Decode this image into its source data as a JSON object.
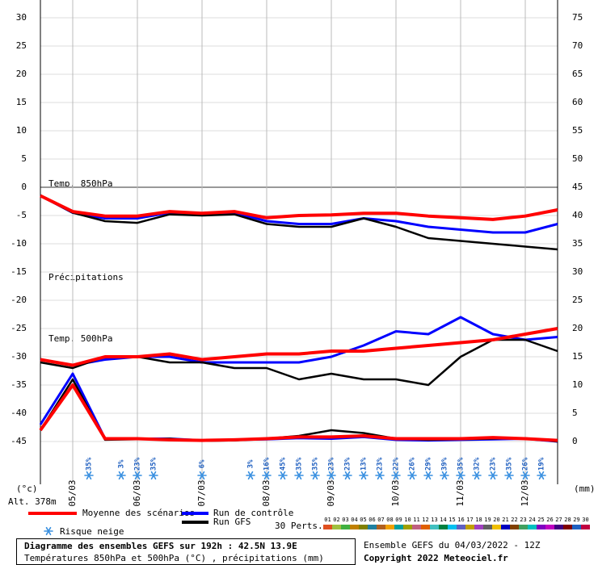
{
  "chart_data": {
    "type": "line",
    "xlim": [
      0,
      192
    ],
    "xticks": [
      {
        "value": 12,
        "label": "05/03"
      },
      {
        "value": 36,
        "label": "06/03"
      },
      {
        "value": 60,
        "label": "07/03"
      },
      {
        "value": 84,
        "label": "08/03"
      },
      {
        "value": 108,
        "label": "09/03"
      },
      {
        "value": 132,
        "label": "10/03"
      },
      {
        "value": 156,
        "label": "11/03"
      },
      {
        "value": 180,
        "label": "12/03"
      }
    ],
    "ylim": [
      -52.57,
      33.14
    ],
    "yticks": [
      -45,
      -40,
      -35,
      -30,
      -25,
      -20,
      -15,
      -10,
      -5,
      0,
      5,
      10,
      15,
      20,
      25,
      30
    ],
    "y2lim": [
      -7.57,
      78.14
    ],
    "y2ticks": [
      0,
      5,
      10,
      15,
      20,
      25,
      30,
      35,
      40,
      45,
      50,
      55,
      60,
      65,
      70,
      75
    ],
    "grid": true,
    "y_unit": "(°c)",
    "y2_unit": "(mm)",
    "altitude": "Alt. 378m",
    "variable_labels": {
      "t850": "Temp. 850hPa",
      "precip": "Précipitations",
      "t500": "Temp. 500hPa"
    },
    "x": [
      0,
      12,
      24,
      36,
      48,
      60,
      72,
      84,
      96,
      108,
      120,
      132,
      144,
      156,
      168,
      180,
      192
    ],
    "runs": [
      {
        "name": "Moyenne des scénarios",
        "color": "#ff0000",
        "t850": [
          -1.5,
          -4.3,
          -5.1,
          -5.1,
          -4.3,
          -4.6,
          -4.3,
          -5.4,
          -5,
          -4.9,
          -4.6,
          -4.6,
          -5.1,
          -5.4,
          -5.7,
          -5.1,
          -4
        ],
        "t500": [
          -30.5,
          -31.5,
          -30,
          -30,
          -29.5,
          -30.5,
          -30,
          -29.5,
          -29.5,
          -29,
          -29,
          -28.5,
          -28,
          -27.5,
          -27,
          -26,
          -25
        ],
        "precip": [
          2,
          10,
          0.5,
          0.5,
          0.3,
          0.2,
          0.3,
          0.5,
          0.8,
          0.8,
          1,
          0.5,
          0.5,
          0.5,
          0.7,
          0.5,
          0.2
        ]
      },
      {
        "name": "Run de contrôle",
        "color": "#0000ff",
        "t850": [
          -1.5,
          -4.5,
          -5.5,
          -5.5,
          -4.5,
          -4.8,
          -4.5,
          -6,
          -6.5,
          -6.5,
          -5.5,
          -6,
          -7,
          -7.5,
          -8,
          -8,
          -6.5
        ],
        "t500": [
          -30.5,
          -31.5,
          -30.5,
          -30,
          -30,
          -31,
          -31,
          -31,
          -31,
          -30,
          -28,
          -25.5,
          -26,
          -23,
          -26,
          -27,
          -26.5
        ],
        "precip": [
          3,
          12,
          0.5,
          0.5,
          0.5,
          0.2,
          0.3,
          0.4,
          0.6,
          0.5,
          0.8,
          0.3,
          0.2,
          0.3,
          0.4,
          0.5,
          0
        ]
      },
      {
        "name": "Run GFS",
        "color": "#000000",
        "t850": [
          -1.5,
          -4.5,
          -6,
          -6.3,
          -4.8,
          -5,
          -4.8,
          -6.5,
          -7,
          -7,
          -5.5,
          -7,
          -9,
          -9.5,
          -10,
          -10.5,
          -11
        ],
        "t500": [
          -31,
          -32,
          -30,
          -30,
          -31,
          -31,
          -32,
          -32,
          -34,
          -33,
          -34,
          -34,
          -35,
          -30,
          -27,
          -27,
          -29
        ],
        "precip": [
          2,
          11,
          0.3,
          0.4,
          0.5,
          0.1,
          0.2,
          0.5,
          1,
          2,
          1.5,
          0.5,
          0.3,
          0.4,
          0.5,
          0.6,
          0
        ]
      }
    ],
    "snow_risk": {
      "label": "Risque neige",
      "x": [
        18,
        30,
        36,
        42,
        60,
        78,
        84,
        90,
        96,
        102,
        108,
        114,
        120,
        126,
        132,
        138,
        144,
        150,
        156,
        162,
        168,
        174,
        180,
        186
      ],
      "values": [
        35,
        3,
        23,
        35,
        6,
        3,
        16,
        45,
        35,
        35,
        23,
        23,
        13,
        23,
        22,
        26,
        29,
        39,
        35,
        32,
        23,
        35,
        26,
        19
      ],
      "value_labels": [
        "35%",
        "3%",
        "23%",
        "35%",
        "6%",
        "3%",
        "16%",
        "45%",
        "35%",
        "35%",
        "23%",
        "23%",
        "13%",
        "23%",
        "22%",
        "26%",
        "29%",
        "39%",
        "35%",
        "32%",
        "23%",
        "35%",
        "26%",
        "19%"
      ]
    },
    "perturbations": {
      "label": "30 Perts.",
      "names": [
        "01",
        "02",
        "03",
        "04",
        "05",
        "06",
        "07",
        "08",
        "09",
        "10",
        "11",
        "12",
        "13",
        "14",
        "15",
        "16",
        "17",
        "18",
        "19",
        "20",
        "21",
        "22",
        "23",
        "24",
        "25",
        "26",
        "27",
        "28",
        "29",
        "30"
      ],
      "colors": [
        "#e05020",
        "#a0c040",
        "#40b040",
        "#c08000",
        "#808000",
        "#2080a0",
        "#b06020",
        "#f0a000",
        "#00a0a0",
        "#a0a000",
        "#c06080",
        "#e06000",
        "#40c0c0",
        "#008040",
        "#00c0f0",
        "#6060c0",
        "#c0a000",
        "#a040c0",
        "#606060",
        "#f0c000",
        "#0000c0",
        "#804000",
        "#40a060",
        "#00c0c0",
        "#8000c0",
        "#c000c0",
        "#400080",
        "#800000",
        "#2060c0",
        "#c00040"
      ]
    },
    "title": "Diagramme des ensembles GEFS sur 192h : 42.5N 13.9E",
    "subtitle": "Températures 850hPa et 500hPa (°C) , précipitations (mm)",
    "run_info": "Ensemble GEFS du 04/03/2022 - 12Z",
    "copyright": "Copyright 2022 Meteociel.fr"
  }
}
